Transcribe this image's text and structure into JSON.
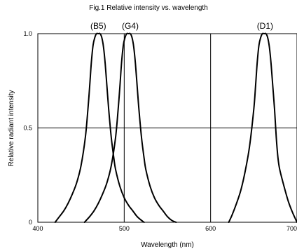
{
  "chart_data": {
    "type": "line",
    "title": "Fig.1 Relative intensity vs. wavelength",
    "xlabel": "Wavelength (nm)",
    "ylabel": "Relative radiant intensity",
    "xlim": [
      400,
      700
    ],
    "ylim": [
      0,
      1.0
    ],
    "x_ticks": [
      400,
      500,
      600,
      700
    ],
    "y_ticks": [
      0,
      0.5,
      1.0
    ],
    "x_tick_labels": [
      "400",
      "500",
      "600",
      "700"
    ],
    "y_tick_labels": [
      "0",
      "0.5",
      "1.0"
    ],
    "grid": true,
    "series": [
      {
        "name": "(B5)",
        "label_x": 470,
        "x": [
          420,
          425,
          430,
          435,
          440,
          445,
          450,
          455,
          458,
          460,
          462,
          464,
          466,
          468,
          470,
          472,
          474,
          476,
          478,
          480,
          482,
          485,
          488,
          490,
          495,
          500,
          505,
          510,
          515,
          520,
          523
        ],
        "y": [
          0.0,
          0.03,
          0.06,
          0.1,
          0.15,
          0.21,
          0.3,
          0.45,
          0.6,
          0.72,
          0.85,
          0.94,
          0.98,
          1.0,
          1.0,
          1.0,
          0.98,
          0.93,
          0.84,
          0.72,
          0.6,
          0.45,
          0.34,
          0.28,
          0.19,
          0.13,
          0.09,
          0.06,
          0.03,
          0.01,
          0.0
        ]
      },
      {
        "name": "(G4)",
        "label_x": 507,
        "x": [
          454,
          460,
          465,
          470,
          475,
          480,
          485,
          490,
          493,
          495,
          497,
          499,
          501,
          503,
          505,
          507,
          509,
          511,
          513,
          515,
          517,
          520,
          523,
          525,
          530,
          535,
          540,
          545,
          550,
          555,
          560
        ],
        "y": [
          0.0,
          0.03,
          0.06,
          0.1,
          0.15,
          0.21,
          0.3,
          0.45,
          0.6,
          0.72,
          0.85,
          0.94,
          0.98,
          1.0,
          1.0,
          1.0,
          0.98,
          0.93,
          0.84,
          0.72,
          0.6,
          0.45,
          0.34,
          0.28,
          0.19,
          0.13,
          0.09,
          0.06,
          0.03,
          0.01,
          0.0
        ]
      },
      {
        "name": "(D1)",
        "label_x": 663,
        "x": [
          621,
          625,
          630,
          635,
          640,
          645,
          650,
          652,
          654,
          656,
          658,
          660,
          662,
          664,
          666,
          668,
          670,
          672,
          674,
          676,
          678,
          680,
          685,
          690,
          695,
          700
        ],
        "y": [
          0.0,
          0.04,
          0.1,
          0.17,
          0.27,
          0.4,
          0.6,
          0.72,
          0.85,
          0.94,
          0.98,
          1.0,
          1.0,
          1.0,
          0.98,
          0.93,
          0.84,
          0.72,
          0.6,
          0.45,
          0.34,
          0.28,
          0.19,
          0.11,
          0.05,
          0.0
        ]
      }
    ]
  }
}
